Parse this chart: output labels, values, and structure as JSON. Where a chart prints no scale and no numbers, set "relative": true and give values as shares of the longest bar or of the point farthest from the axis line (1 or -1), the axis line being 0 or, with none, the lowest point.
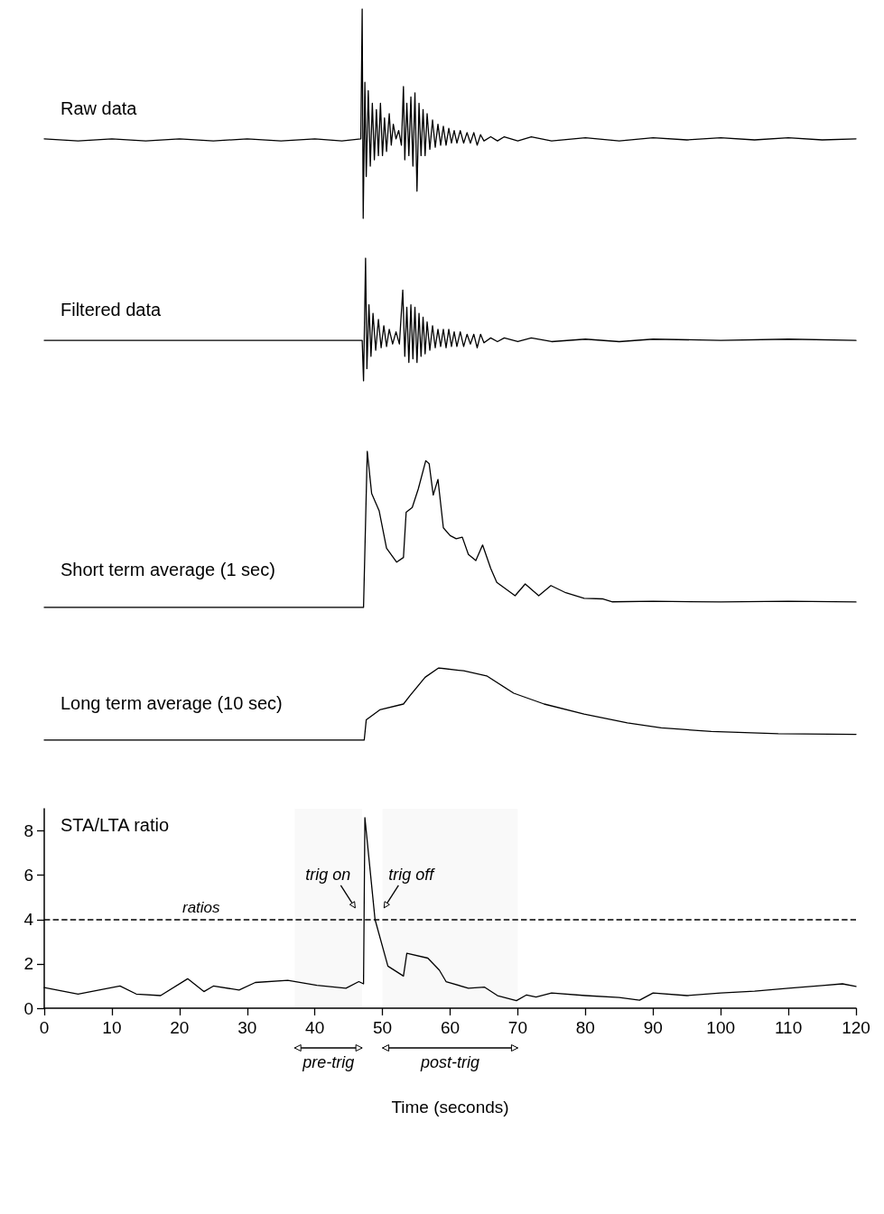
{
  "chart_data": [
    {
      "type": "line",
      "title": "Raw data",
      "relative": true,
      "color": "#000000",
      "marker": "none",
      "line_style": "solid",
      "xlim": [
        0,
        120
      ],
      "tick_labels": false,
      "x": [
        0,
        5,
        10,
        15,
        20,
        25,
        30,
        35,
        40,
        44,
        46.8,
        47.0,
        47.15,
        47.4,
        47.6,
        47.9,
        48.2,
        48.5,
        48.8,
        49.1,
        49.4,
        49.7,
        50.0,
        50.3,
        50.6,
        51.0,
        51.3,
        51.6,
        52.0,
        52.4,
        52.8,
        53.1,
        53.3,
        53.6,
        53.9,
        54.2,
        54.5,
        54.8,
        55.1,
        55.4,
        55.7,
        56.0,
        56.3,
        56.6,
        57.0,
        57.4,
        57.8,
        58.2,
        58.6,
        59.0,
        59.4,
        59.8,
        60.2,
        60.6,
        61.0,
        61.5,
        62,
        62.5,
        63,
        63.5,
        64,
        64.5,
        65,
        66,
        67,
        68,
        70,
        72,
        75,
        80,
        85,
        90,
        95,
        100,
        105,
        110,
        115,
        120
      ],
      "values": [
        0.38,
        0.37,
        0.38,
        0.37,
        0.38,
        0.37,
        0.38,
        0.37,
        0.38,
        0.37,
        0.38,
        1,
        0,
        0.65,
        0.2,
        0.61,
        0.25,
        0.55,
        0.28,
        0.52,
        0.3,
        0.55,
        0.3,
        0.48,
        0.32,
        0.5,
        0.35,
        0.45,
        0.38,
        0.42,
        0.35,
        0.63,
        0.28,
        0.55,
        0.3,
        0.58,
        0.25,
        0.6,
        0.13,
        0.55,
        0.3,
        0.52,
        0.3,
        0.5,
        0.33,
        0.47,
        0.34,
        0.45,
        0.35,
        0.44,
        0.35,
        0.43,
        0.36,
        0.42,
        0.36,
        0.42,
        0.36,
        0.41,
        0.36,
        0.41,
        0.35,
        0.4,
        0.37,
        0.39,
        0.37,
        0.39,
        0.37,
        0.39,
        0.37,
        0.385,
        0.37,
        0.385,
        0.375,
        0.385,
        0.375,
        0.385,
        0.375,
        0.38
      ]
    },
    {
      "type": "line",
      "title": "Filtered data",
      "relative": true,
      "color": "#000000",
      "marker": "none",
      "line_style": "solid",
      "xlim": [
        0,
        120
      ],
      "tick_labels": false,
      "x": [
        0,
        10,
        20,
        30,
        40,
        47.0,
        47.2,
        47.5,
        47.7,
        48.0,
        48.3,
        48.6,
        49.0,
        49.4,
        49.8,
        50.2,
        50.6,
        51.0,
        51.5,
        52.0,
        52.5,
        53.0,
        53.3,
        53.6,
        53.9,
        54.2,
        54.5,
        54.8,
        55.1,
        55.4,
        55.7,
        56.0,
        56.3,
        56.6,
        57.0,
        57.4,
        57.8,
        58.2,
        58.6,
        59.0,
        59.4,
        59.8,
        60.2,
        60.6,
        61.0,
        61.5,
        62,
        62.5,
        63,
        63.5,
        64,
        64.5,
        65,
        66,
        67,
        68,
        70,
        72,
        75,
        80,
        85,
        90,
        100,
        110,
        120
      ],
      "values": [
        0.33,
        0.33,
        0.33,
        0.33,
        0.33,
        0.33,
        0,
        1,
        0.1,
        0.62,
        0.2,
        0.55,
        0.25,
        0.5,
        0.27,
        0.45,
        0.28,
        0.42,
        0.3,
        0.4,
        0.3,
        0.74,
        0.2,
        0.6,
        0.15,
        0.62,
        0.18,
        0.6,
        0.15,
        0.55,
        0.2,
        0.52,
        0.22,
        0.48,
        0.25,
        0.45,
        0.27,
        0.42,
        0.28,
        0.42,
        0.27,
        0.42,
        0.28,
        0.4,
        0.28,
        0.4,
        0.28,
        0.38,
        0.3,
        0.38,
        0.27,
        0.38,
        0.31,
        0.35,
        0.32,
        0.35,
        0.32,
        0.35,
        0.32,
        0.34,
        0.32,
        0.34,
        0.33,
        0.34,
        0.33
      ]
    },
    {
      "type": "line",
      "title": "Short term average (1 sec)",
      "relative": true,
      "color": "#000000",
      "marker": "none",
      "line_style": "solid",
      "xlim": [
        0,
        120
      ],
      "tick_labels": false,
      "x": [
        0,
        20,
        40,
        47.2,
        47.75,
        48.4,
        49.5,
        50.6,
        52.1,
        53.1,
        53.5,
        54.4,
        55.3,
        56.4,
        56.9,
        57.5,
        58.2,
        59.0,
        60.0,
        60.9,
        61.8,
        62.7,
        63.8,
        64.8,
        66.0,
        66.9,
        69.6,
        71.1,
        73.1,
        74.9,
        77.1,
        79.8,
        82.5,
        84.0,
        90,
        100,
        110,
        120
      ],
      "values": [
        0,
        0,
        0,
        0,
        1,
        0.73,
        0.62,
        0.38,
        0.29,
        0.32,
        0.61,
        0.64,
        0.76,
        0.94,
        0.92,
        0.72,
        0.82,
        0.51,
        0.46,
        0.44,
        0.45,
        0.34,
        0.3,
        0.4,
        0.25,
        0.16,
        0.075,
        0.15,
        0.075,
        0.14,
        0.094,
        0.058,
        0.055,
        0.036,
        0.04,
        0.035,
        0.04,
        0.035
      ]
    },
    {
      "type": "line",
      "title": "Long term average (10 sec)",
      "relative": true,
      "color": "#000000",
      "marker": "none",
      "line_style": "solid",
      "xlim": [
        0,
        120
      ],
      "tick_labels": false,
      "x": [
        0,
        20,
        40,
        47.3,
        47.6,
        49.6,
        53.1,
        54.1,
        56.3,
        58.3,
        62.0,
        65.4,
        69.4,
        73.9,
        79.8,
        86.2,
        91.2,
        98.6,
        108.5,
        120
      ],
      "values": [
        0,
        0,
        0,
        0,
        0.28,
        0.42,
        0.5,
        0.62,
        0.87,
        1,
        0.96,
        0.89,
        0.65,
        0.5,
        0.36,
        0.24,
        0.17,
        0.12,
        0.09,
        0.08
      ]
    },
    {
      "type": "line",
      "title": "STA/LTA ratio",
      "xlabel": "Time (seconds)",
      "color": "#000000",
      "marker": "none",
      "line_style": "solid",
      "xlim": [
        0,
        120
      ],
      "xticks": [
        0,
        10,
        20,
        30,
        40,
        50,
        60,
        70,
        80,
        90,
        100,
        110,
        120
      ],
      "ylim": [
        0,
        9
      ],
      "yticks": [
        0,
        2,
        4,
        6,
        8
      ],
      "x": [
        0,
        5,
        11.2,
        13.6,
        17.2,
        21.2,
        23.6,
        25,
        28.8,
        31.2,
        36,
        40.3,
        44.6,
        46.5,
        47.2,
        47.4,
        48.9,
        50.8,
        53.1,
        53.6,
        56.7,
        58.4,
        59.4,
        62.7,
        65.1,
        67,
        69.8,
        71.3,
        72.7,
        75,
        80,
        85,
        88,
        90,
        95,
        100,
        105,
        110,
        115,
        118,
        120
      ],
      "values": [
        0.93,
        0.64,
        1.0,
        0.64,
        0.57,
        1.33,
        0.75,
        1.0,
        0.82,
        1.16,
        1.26,
        1.03,
        0.9,
        1.2,
        1.1,
        8.6,
        4.0,
        1.9,
        1.45,
        2.48,
        2.26,
        1.72,
        1.2,
        0.9,
        0.95,
        0.57,
        0.34,
        0.6,
        0.5,
        0.69,
        0.57,
        0.48,
        0.36,
        0.69,
        0.57,
        0.69,
        0.77,
        0.9,
        1.02,
        1.1,
        0.98
      ],
      "ref_lines": [
        {
          "axis": "y",
          "value": 4,
          "label": "ratios",
          "line_style": "dashed"
        }
      ],
      "bands": [
        {
          "axis": "x",
          "from": 37,
          "to": 47,
          "label": "pre-trig"
        },
        {
          "axis": "x",
          "from": 50,
          "to": 70,
          "label": "post-trig"
        }
      ],
      "annotations": [
        {
          "text": "trig on",
          "x": 47.3,
          "y": 4
        },
        {
          "text": "trig off",
          "x": 48.9,
          "y": 4
        }
      ]
    }
  ]
}
